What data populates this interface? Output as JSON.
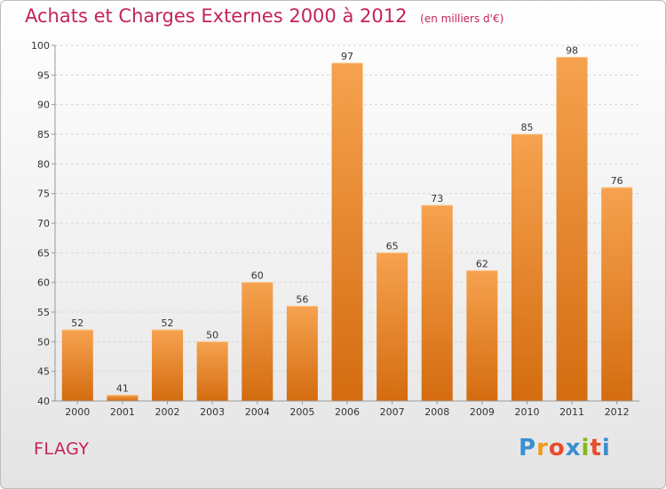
{
  "header": {
    "title": "Achats et Charges Externes 2000 à 2012",
    "subtitle": "(en milliers d'€)"
  },
  "footer": {
    "location": "FLAGY",
    "logo_text": "Proxiti"
  },
  "colors": {
    "title": "#c4225e",
    "bar_light": "#f6a24f",
    "bar_dark": "#d46c10",
    "grid": "#d7d7d7",
    "axis": "#999999",
    "label": "#333333"
  },
  "chart_data": {
    "type": "bar",
    "title": "Achats et Charges Externes 2000 à 2012",
    "subtitle": "(en milliers d'€)",
    "xlabel": "",
    "ylabel": "",
    "categories": [
      "2000",
      "2001",
      "2002",
      "2003",
      "2004",
      "2005",
      "2006",
      "2007",
      "2008",
      "2009",
      "2010",
      "2011",
      "2012"
    ],
    "values": [
      52,
      41,
      52,
      50,
      60,
      56,
      97,
      65,
      73,
      62,
      85,
      98,
      76
    ],
    "ylim": [
      40,
      100
    ],
    "yticks": [
      40,
      45,
      50,
      55,
      60,
      65,
      70,
      75,
      80,
      85,
      90,
      95,
      100
    ],
    "grid": true,
    "legend": "none"
  }
}
